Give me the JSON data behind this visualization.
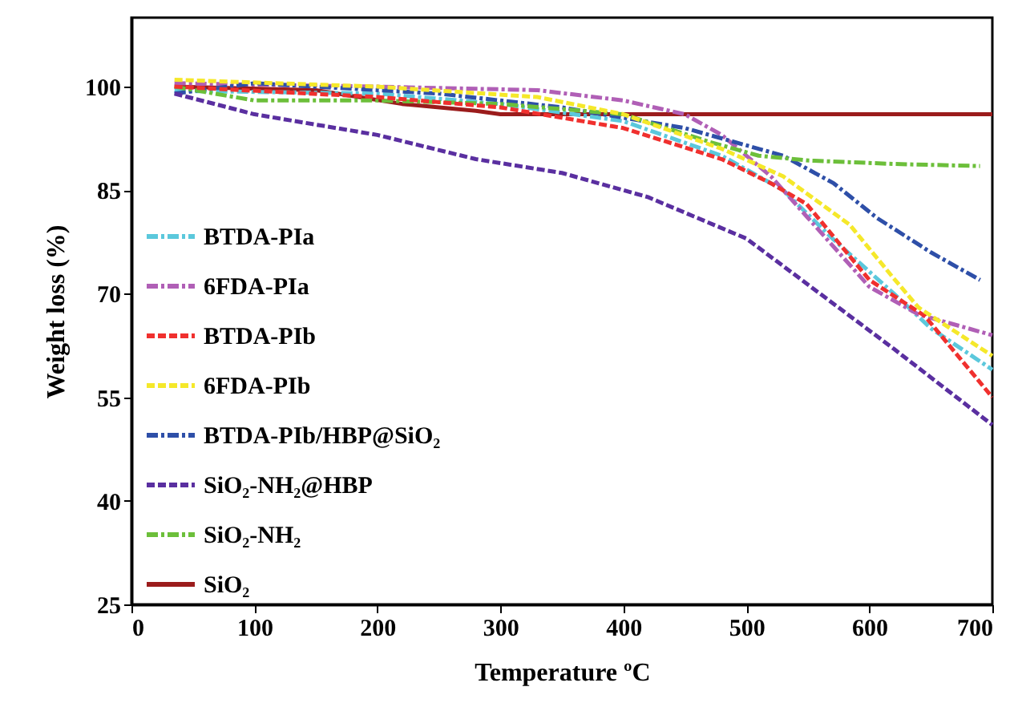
{
  "chart_data": {
    "type": "line",
    "xlabel": "Temperature ºC",
    "ylabel": "Weight loss (%)",
    "xlim": [
      0,
      700
    ],
    "xticks": [
      0,
      100,
      200,
      300,
      400,
      500,
      600,
      700
    ],
    "ylim": [
      25,
      110
    ],
    "yticks": [
      25,
      40,
      55,
      70,
      85,
      100
    ],
    "grid": false,
    "legend": "left",
    "marker": "none",
    "series": [
      {
        "name": "BTDA-PIa",
        "color": "#5bc8dc",
        "line_style": "dashdot",
        "x": [
          35,
          200,
          300,
          400,
          480,
          530,
          570,
          620,
          650,
          700
        ],
        "values": [
          99.4,
          99,
          97.5,
          95,
          90,
          85,
          78,
          70,
          65,
          59
        ]
      },
      {
        "name": "6FDA-PIa",
        "color": "#b05fb6",
        "line_style": "dashdot",
        "x": [
          35,
          200,
          330,
          400,
          450,
          480,
          520,
          550,
          575,
          600,
          640,
          700
        ],
        "values": [
          100.5,
          100,
          99.5,
          98,
          96,
          93,
          87,
          81,
          76,
          71,
          67,
          64
        ]
      },
      {
        "name": "BTDA-PIb",
        "color": "#f0302e",
        "line_style": "dashed",
        "x": [
          35,
          200,
          300,
          400,
          480,
          520,
          549,
          600,
          645,
          700
        ],
        "values": [
          100,
          98.5,
          97,
          94,
          89.5,
          86,
          83,
          72,
          66.8,
          55
        ]
      },
      {
        "name": "6FDA-PIb",
        "color": "#f5e82a",
        "line_style": "dashed",
        "x": [
          35,
          200,
          330,
          400,
          480,
          530,
          584,
          619,
          640,
          700
        ],
        "values": [
          101,
          100,
          98.5,
          96,
          91,
          87,
          80,
          72.4,
          68,
          61
        ]
      },
      {
        "name": "BTDA-PIb/HBP@SiO₂",
        "color": "#2e4fa8",
        "line_style": "dashdot",
        "x": [
          35,
          100,
          250,
          350,
          450,
          530,
          571,
          606,
          650,
          690
        ],
        "values": [
          99,
          100.5,
          99,
          97,
          94,
          90,
          86,
          81,
          76,
          72
        ]
      },
      {
        "name": "SiO₂-NH₂@HBP",
        "color": "#5a2fa0",
        "line_style": "dashed",
        "x": [
          35,
          100,
          200,
          280,
          350,
          420,
          500,
          560,
          620,
          700
        ],
        "values": [
          99,
          96,
          93,
          89.5,
          87.5,
          84,
          78,
          70,
          62,
          51
        ]
      },
      {
        "name": "SiO₂-NH₂",
        "color": "#6cbf3a",
        "line_style": "dashdot",
        "x": [
          35,
          100,
          200,
          300,
          400,
          470,
          510,
          551,
          620,
          690
        ],
        "values": [
          100,
          98,
          98,
          97.5,
          96,
          92,
          90,
          89.3,
          88.8,
          88.5
        ]
      },
      {
        "name": "SiO₂",
        "color": "#9b1c1c",
        "line_style": "solid",
        "x": [
          35,
          150,
          220,
          280,
          300,
          400,
          500,
          600,
          700
        ],
        "values": [
          100,
          99.5,
          97.5,
          96.5,
          96,
          96,
          96,
          96,
          96
        ]
      }
    ]
  }
}
